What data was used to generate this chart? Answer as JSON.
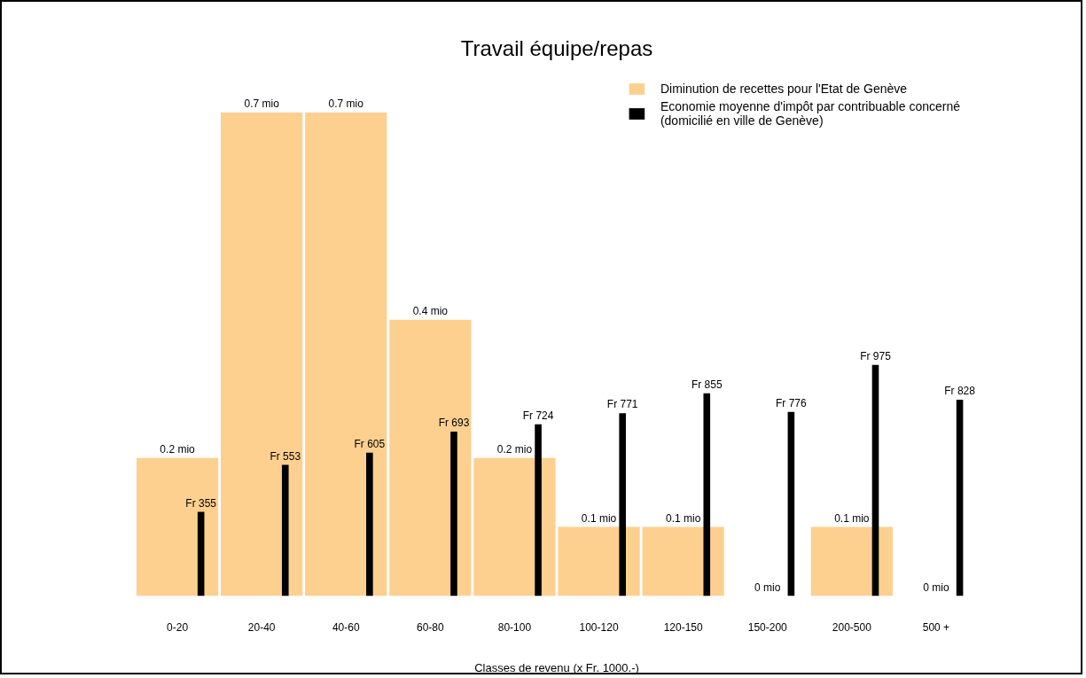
{
  "chart_data": {
    "type": "bar",
    "title": "Travail équipe/repas",
    "xlabel": "Classes de revenu (x Fr. 1000.-)",
    "categories": [
      "0-20",
      "20-40",
      "40-60",
      "60-80",
      "80-100",
      "100-120",
      "120-150",
      "150-200",
      "200-500",
      "500 +"
    ],
    "series": [
      {
        "name": "Diminution de recettes pour l'Etat de Genève",
        "color": "#fdd08f",
        "values": [
          0.2,
          0.7,
          0.7,
          0.4,
          0.2,
          0.1,
          0.1,
          0,
          0.1,
          0
        ],
        "value_labels": [
          "0.2 mio",
          "0.7 mio",
          "0.7 mio",
          "0.4 mio",
          "0.2 mio",
          "0.1 mio",
          "0.1 mio",
          "0 mio",
          "0.1 mio",
          "0 mio"
        ]
      },
      {
        "name": "Economie moyenne d'impôt par contribuable concerné (domicilié en ville de Genève)",
        "color": "#000000",
        "axis": "y2",
        "values": [
          355,
          553,
          605,
          693,
          724,
          771,
          855,
          776,
          975,
          828
        ],
        "value_labels": [
          "Fr 355",
          "Fr 553",
          "Fr 605",
          "Fr 693",
          "Fr 724",
          "Fr 771",
          "Fr 855",
          "Fr 776",
          "Fr 975",
          "Fr 828"
        ]
      }
    ],
    "legend": "top right",
    "tick_labels": "x"
  }
}
